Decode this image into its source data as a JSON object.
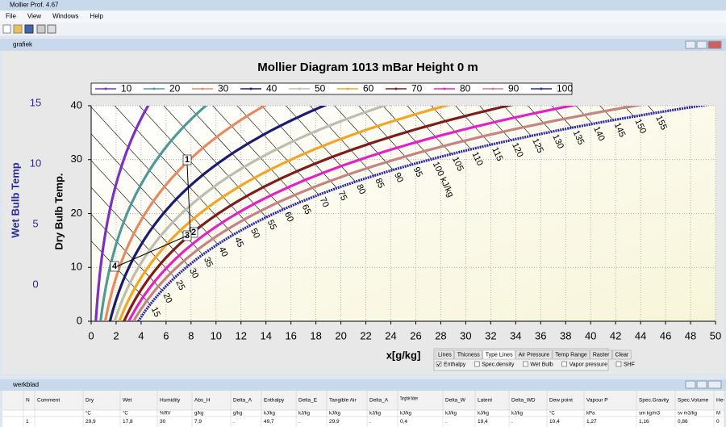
{
  "window": {
    "title": "Mollier Prof. 4.67",
    "menu": [
      "File",
      "View",
      "Windows",
      "Help"
    ]
  },
  "chart_window": {
    "title": "grafiek"
  },
  "chart_data": {
    "type": "line",
    "title": "Mollier Diagram  1013 mBar   Height 0 m",
    "pressure": 1013,
    "xlabel": "x[g/kg]",
    "ylabel": "Dry Bulb Temp.",
    "y2label": "Wet Bulb Temp",
    "xlim": [
      0,
      50
    ],
    "xticks": [
      0,
      2,
      4,
      6,
      8,
      10,
      12,
      14,
      16,
      18,
      20,
      22,
      24,
      26,
      28,
      30,
      32,
      34,
      36,
      38,
      40,
      42,
      44,
      46,
      48,
      50
    ],
    "ylim": [
      0,
      40
    ],
    "yticks": [
      0,
      10,
      20,
      30,
      40
    ],
    "y2lim": [
      -3,
      14.8
    ],
    "y2ticks": [
      0,
      5,
      10,
      15
    ],
    "grid": true,
    "series": [
      {
        "name": 10,
        "color": "#7b30c0"
      },
      {
        "name": 20,
        "color": "#4f9a98"
      },
      {
        "name": 30,
        "color": "#e58a62"
      },
      {
        "name": 40,
        "color": "#1c1c6e"
      },
      {
        "name": 50,
        "color": "#bdbdb0"
      },
      {
        "name": 60,
        "color": "#f2a628"
      },
      {
        "name": 70,
        "color": "#7c1c1c"
      },
      {
        "name": 80,
        "color": "#e024c4"
      },
      {
        "name": 90,
        "color": "#c48484"
      },
      {
        "name": 100,
        "color": "#2828a8"
      }
    ],
    "enthalpy": {
      "values": [
        15,
        20,
        25,
        30,
        35,
        40,
        45,
        50,
        55,
        60,
        65,
        70,
        75,
        80,
        85,
        90,
        95,
        100,
        105,
        110,
        115,
        120,
        125,
        130,
        135,
        140,
        145,
        150,
        155
      ],
      "value_labels": [
        "15",
        "20",
        "25",
        "30",
        "35",
        "40",
        "45",
        "50",
        "55",
        "60",
        "65",
        "70",
        "75",
        "80",
        "85",
        "90",
        "95",
        "100 kJ/kg",
        "105",
        "110",
        "115",
        "120",
        "125",
        "130",
        "135",
        "140",
        "145",
        "150",
        "155"
      ]
    },
    "annotations": [
      "1",
      "2",
      "3",
      "4"
    ]
  },
  "panel": {
    "tabs": [
      "Lines",
      "Thicness",
      "Type Lines",
      "Air Pressure",
      "Temp Range",
      "Raster",
      "Clear"
    ],
    "checks": [
      {
        "label": "Enthalpy",
        "checked": true
      },
      {
        "label": "Spec.density",
        "checked": false
      },
      {
        "label": "Wet Bulb",
        "checked": false
      },
      {
        "label": "Vapor pressure",
        "checked": false
      },
      {
        "label": "SHF",
        "checked": false
      }
    ]
  },
  "sheet": {
    "title": "werkblad",
    "header": [
      "N",
      "Comment",
      "Dry",
      "Wet",
      "Humidity",
      "Abs_H",
      "Delta_A",
      "Enthalpy",
      "Delta_E",
      "Tangible Air",
      "Delta_A",
      "Tangible Water",
      "Delta_W",
      "Latent",
      "Delta_WD",
      "Dew point",
      "Vapour P",
      "Spec.Gravity",
      "Spec.Volume",
      "He-"
    ],
    "units": [
      "",
      "",
      "°C",
      "°C",
      "%RV",
      "g/kg",
      "g/kg",
      "kJ/kg",
      "kJ/kg",
      "kJ/kg",
      "kJ/kg",
      "kJ/kg",
      "kJ/kg",
      "kJ/kg",
      "kJ/kg",
      "°C",
      "kPa",
      "sm kg/m3",
      "sv m3/kg",
      "M"
    ],
    "rows": [
      [
        "1",
        "",
        "29,9",
        "17,8",
        "30",
        "7,9",
        ".",
        "49,7",
        ".",
        "29,9",
        ".",
        "0,4",
        ".",
        "19,4",
        ".",
        "10,4",
        "1,27",
        "1,16",
        "0,86",
        "0"
      ]
    ]
  }
}
